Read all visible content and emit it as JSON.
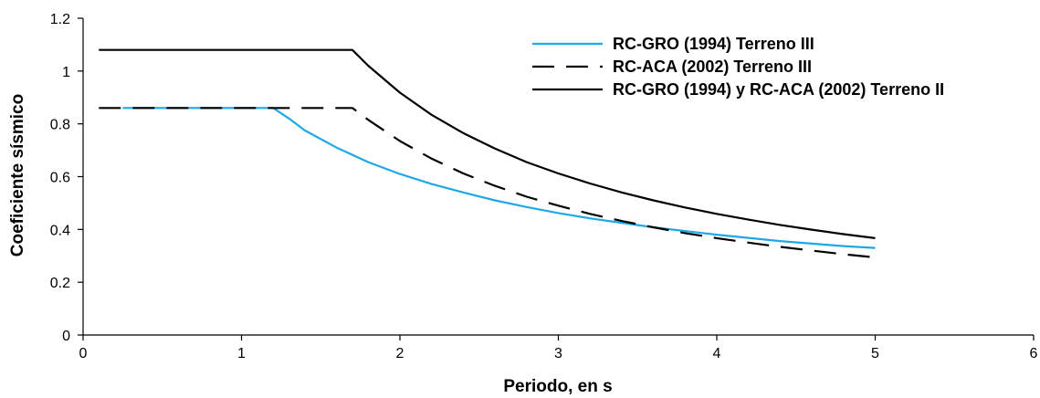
{
  "chart_data": {
    "type": "line",
    "title": "",
    "xlabel": "Periodo, en s",
    "ylabel": "Coeficiente sísmico",
    "xlim": [
      0,
      6
    ],
    "ylim": [
      0,
      1.2
    ],
    "x_ticks": [
      0,
      1,
      2,
      3,
      4,
      5,
      6
    ],
    "y_ticks": [
      0,
      0.2,
      0.4,
      0.6,
      0.8,
      1,
      1.2
    ],
    "x_tick_labels": [
      "0",
      "1",
      "2",
      "3",
      "4",
      "5",
      "6"
    ],
    "y_tick_labels": [
      "0",
      "0.2",
      "0.4",
      "0.6",
      "0.8",
      "1",
      "1.2"
    ],
    "grid": false,
    "legend_position": "top-right",
    "series": [
      {
        "name": "RC-GRO (1994) Terreno III",
        "color": "#1fa8e8",
        "dash": "solid",
        "points": [
          [
            0.25,
            0.86
          ],
          [
            1.2,
            0.86
          ],
          [
            1.3,
            0.82
          ],
          [
            1.4,
            0.775
          ],
          [
            1.6,
            0.71
          ],
          [
            1.8,
            0.655
          ],
          [
            2.0,
            0.61
          ],
          [
            2.2,
            0.572
          ],
          [
            2.4,
            0.54
          ],
          [
            2.6,
            0.51
          ],
          [
            2.8,
            0.485
          ],
          [
            3.0,
            0.462
          ],
          [
            3.2,
            0.442
          ],
          [
            3.4,
            0.425
          ],
          [
            3.6,
            0.408
          ],
          [
            3.8,
            0.394
          ],
          [
            4.0,
            0.38
          ],
          [
            4.2,
            0.368
          ],
          [
            4.4,
            0.356
          ],
          [
            4.6,
            0.346
          ],
          [
            4.8,
            0.337
          ],
          [
            5.0,
            0.33
          ]
        ]
      },
      {
        "name": "RC-ACA (2002) Terreno III",
        "color": "#000000",
        "dash": "dashed",
        "points": [
          [
            0.1,
            0.86
          ],
          [
            1.7,
            0.86
          ],
          [
            1.8,
            0.815
          ],
          [
            2.0,
            0.735
          ],
          [
            2.2,
            0.668
          ],
          [
            2.4,
            0.612
          ],
          [
            2.6,
            0.565
          ],
          [
            2.8,
            0.524
          ],
          [
            3.0,
            0.49
          ],
          [
            3.2,
            0.459
          ],
          [
            3.4,
            0.432
          ],
          [
            3.6,
            0.408
          ],
          [
            3.8,
            0.386
          ],
          [
            4.0,
            0.367
          ],
          [
            4.2,
            0.35
          ],
          [
            4.4,
            0.334
          ],
          [
            4.6,
            0.32
          ],
          [
            4.8,
            0.306
          ],
          [
            5.0,
            0.294
          ]
        ]
      },
      {
        "name": "RC-GRO (1994) y RC-ACA (2002) Terreno II",
        "color": "#000000",
        "dash": "solid",
        "points": [
          [
            0.1,
            1.08
          ],
          [
            1.7,
            1.08
          ],
          [
            1.8,
            1.02
          ],
          [
            2.0,
            0.918
          ],
          [
            2.2,
            0.834
          ],
          [
            2.4,
            0.765
          ],
          [
            2.6,
            0.706
          ],
          [
            2.8,
            0.655
          ],
          [
            3.0,
            0.612
          ],
          [
            3.2,
            0.574
          ],
          [
            3.4,
            0.54
          ],
          [
            3.6,
            0.51
          ],
          [
            3.8,
            0.483
          ],
          [
            4.0,
            0.459
          ],
          [
            4.2,
            0.437
          ],
          [
            4.4,
            0.417
          ],
          [
            4.6,
            0.399
          ],
          [
            4.8,
            0.382
          ],
          [
            5.0,
            0.367
          ]
        ]
      }
    ]
  }
}
